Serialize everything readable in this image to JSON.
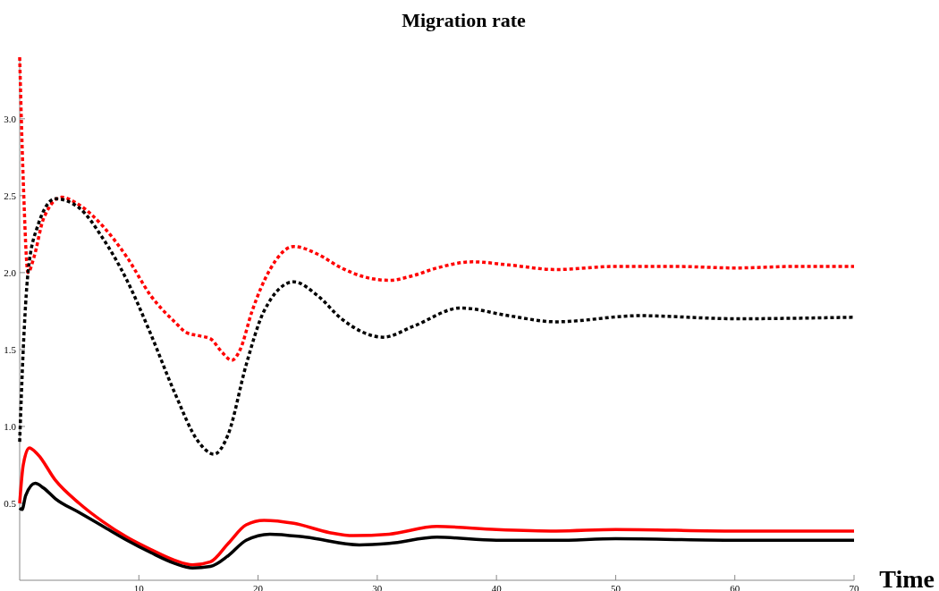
{
  "chart_data": {
    "type": "line",
    "title": "Migration rate",
    "xlabel": "Time",
    "xlim": [
      0,
      70
    ],
    "ylim": [
      0,
      3.4
    ],
    "xticks": [
      10,
      20,
      30,
      40,
      50,
      60,
      70
    ],
    "yticks": [
      0.5,
      {
        "value": 1,
        "label": "1.0"
      },
      1.5,
      {
        "value": 2,
        "label": "2.0"
      },
      2.5,
      {
        "value": 3,
        "label": "3.0"
      }
    ],
    "grid": false,
    "marker": "none",
    "series": [
      {
        "color": "#ff0000",
        "line_style": "dotted",
        "x": [
          0,
          0.3,
          0.7,
          1.2,
          2,
          3.5,
          5,
          7,
          9,
          11,
          13,
          14,
          15,
          16,
          17,
          17.8,
          18.5,
          19.5,
          21,
          23,
          25,
          27,
          29,
          31,
          33,
          35,
          38,
          41,
          45,
          50,
          55,
          60,
          65,
          70
        ],
        "values": [
          3.4,
          2.6,
          2.0,
          2.1,
          2.35,
          2.49,
          2.44,
          2.3,
          2.1,
          1.85,
          1.68,
          1.61,
          1.59,
          1.57,
          1.48,
          1.43,
          1.5,
          1.75,
          2.02,
          2.17,
          2.12,
          2.03,
          1.97,
          1.95,
          1.98,
          2.03,
          2.07,
          2.05,
          2.02,
          2.04,
          2.04,
          2.03,
          2.04,
          2.04
        ]
      },
      {
        "color": "#000000",
        "line_style": "dotted",
        "x": [
          0,
          0.3,
          0.7,
          1.5,
          3,
          5,
          7,
          9,
          11,
          13,
          15,
          16.3,
          17.5,
          19,
          20.5,
          23,
          25,
          27,
          30.5,
          33,
          37,
          41,
          45,
          52,
          60,
          70
        ],
        "values": [
          0.9,
          1.5,
          2.0,
          2.3,
          2.48,
          2.42,
          2.22,
          1.95,
          1.6,
          1.22,
          0.9,
          0.82,
          0.95,
          1.4,
          1.75,
          1.94,
          1.85,
          1.7,
          1.58,
          1.65,
          1.77,
          1.72,
          1.68,
          1.72,
          1.7,
          1.71
        ]
      },
      {
        "color": "#ff0000",
        "line_style": "solid",
        "x": [
          0,
          0.3,
          0.8,
          1.5,
          3,
          5,
          7,
          9,
          11,
          13,
          14.5,
          16,
          17.5,
          19,
          20.5,
          23,
          26,
          28,
          31,
          35,
          40,
          45,
          50,
          60,
          70
        ],
        "values": [
          0.5,
          0.75,
          0.86,
          0.82,
          0.65,
          0.5,
          0.38,
          0.28,
          0.2,
          0.13,
          0.1,
          0.12,
          0.24,
          0.36,
          0.39,
          0.37,
          0.31,
          0.29,
          0.3,
          0.35,
          0.33,
          0.32,
          0.33,
          0.32,
          0.32
        ]
      },
      {
        "color": "#000000",
        "line_style": "solid",
        "x": [
          0,
          0.2,
          0.5,
          1.3,
          2,
          3,
          5,
          7,
          9,
          11,
          13,
          14.5,
          16,
          17.5,
          19,
          21,
          24,
          28.5,
          31,
          35,
          40,
          45,
          50,
          60,
          70
        ],
        "values": [
          0.47,
          0.46,
          0.55,
          0.63,
          0.6,
          0.53,
          0.44,
          0.35,
          0.26,
          0.18,
          0.11,
          0.08,
          0.09,
          0.16,
          0.26,
          0.3,
          0.28,
          0.23,
          0.24,
          0.28,
          0.26,
          0.26,
          0.27,
          0.26,
          0.26
        ]
      }
    ]
  }
}
